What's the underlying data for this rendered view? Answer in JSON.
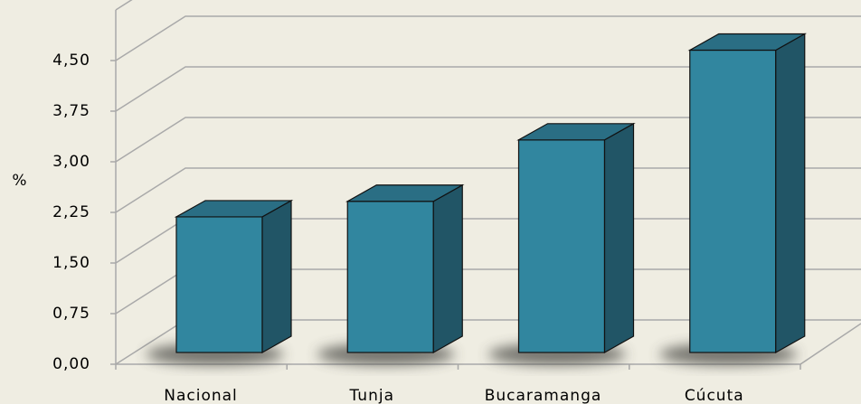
{
  "chart_data": {
    "type": "bar3d",
    "y_label": "%",
    "categories": [
      "Nacional",
      "Tunja",
      "Bucaramanga",
      "Cúcuta"
    ],
    "values": [
      2.01,
      2.24,
      3.15,
      4.48
    ],
    "color": "#31869f",
    "ylim": [
      0,
      5.25
    ],
    "yticks": [
      {
        "value": 0,
        "label": "0,00"
      },
      {
        "value": 0.75,
        "label": "0,75"
      },
      {
        "value": 1.5,
        "label": "1,50"
      },
      {
        "value": 2.25,
        "label": "2,25"
      },
      {
        "value": 3,
        "label": "3,00"
      },
      {
        "value": 3.75,
        "label": "3,75"
      },
      {
        "value": 4.5,
        "label": "4,50"
      }
    ],
    "grid": true
  }
}
